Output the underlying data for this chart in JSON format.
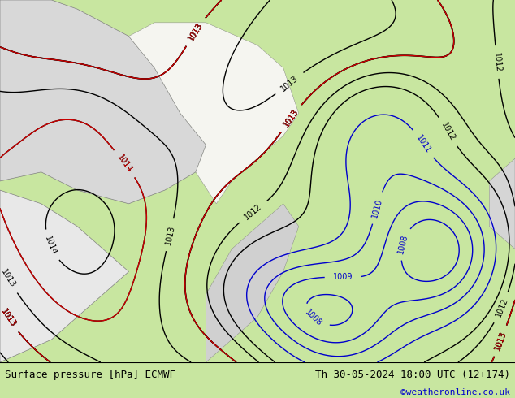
{
  "title_left": "Surface pressure [hPa] ECMWF",
  "title_right": "Th 30-05-2024 18:00 UTC (12+174)",
  "credit": "©weatheronline.co.uk",
  "bg_color": "#c8e6a0",
  "land_gray_color": "#d8d8d8",
  "land_white_color": "#f0f0f0",
  "contour_black_color": "#000000",
  "contour_blue_color": "#0000cc",
  "contour_red_color": "#cc0000",
  "label_fontsize": 7,
  "footer_fontsize": 9,
  "credit_fontsize": 8,
  "credit_color": "#0000cc",
  "figsize": [
    6.34,
    4.9
  ],
  "dpi": 100
}
